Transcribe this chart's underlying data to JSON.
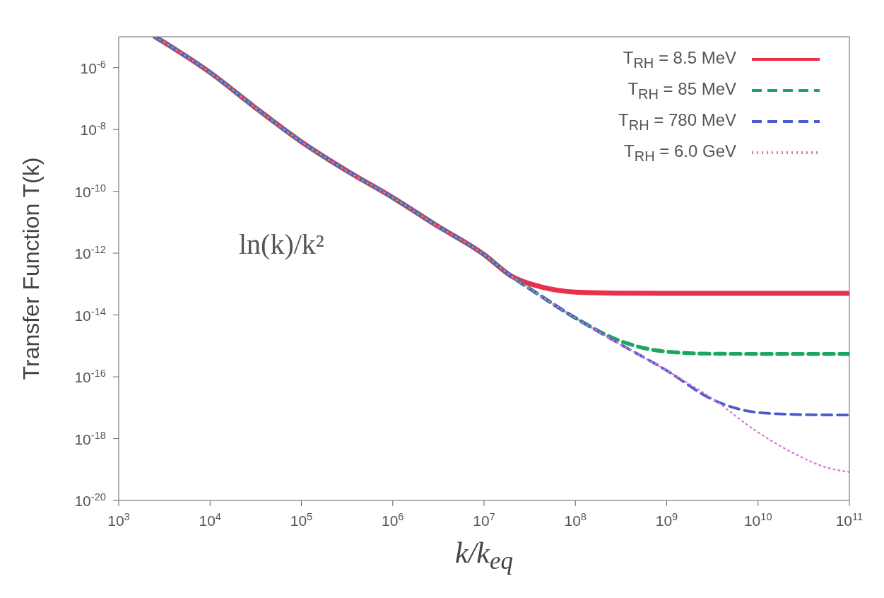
{
  "chart_data": {
    "type": "line",
    "xlabel": "k/k$_{eq}$",
    "ylabel": "Transfer Function T(k)",
    "log": "xy",
    "legend": "top right",
    "marker": "none",
    "xlim": [
      1000,
      100000000000
    ],
    "ylim": [
      1e-20,
      1e-05
    ],
    "xticks": [
      {
        "value": 1000,
        "label": "10$^{3}$"
      },
      {
        "value": 10000,
        "label": "10$^{4}$"
      },
      {
        "value": 100000,
        "label": "10$^{5}$"
      },
      {
        "value": 1000000,
        "label": "10$^{6}$"
      },
      {
        "value": 10000000,
        "label": "10$^{7}$"
      },
      {
        "value": 100000000,
        "label": "10$^{8}$"
      },
      {
        "value": 1000000000,
        "label": "10$^{9}$"
      },
      {
        "value": 10000000000,
        "label": "10$^{10}$"
      },
      {
        "value": 100000000000,
        "label": "10$^{11}$"
      }
    ],
    "yticks": [
      {
        "value": 1e-20,
        "label": "10$^{-20}$"
      },
      {
        "value": 1e-18,
        "label": "10$^{-18}$"
      },
      {
        "value": 1e-16,
        "label": "10$^{-16}$"
      },
      {
        "value": 1e-14,
        "label": "10$^{-14}$"
      },
      {
        "value": 1e-12,
        "label": "10$^{-12}$"
      },
      {
        "value": 1e-10,
        "label": "10$^{-10}$"
      },
      {
        "value": 1e-08,
        "label": "10$^{-8}$"
      },
      {
        "value": 1e-06,
        "label": "10$^{-6}$"
      }
    ],
    "annotations": [
      "ln(k)/k²"
    ],
    "series": [
      {
        "name": "T$_{RH}$ = 8.5 MeV",
        "color": "#e8304a",
        "line_style": "solid",
        "x": [
          2500,
          10000,
          30000,
          100000,
          300000,
          1000000,
          3000000,
          10000000,
          20000000,
          43000000,
          100000000,
          300000000,
          1000000000,
          10000000000,
          100000000000
        ],
        "values": [
          1e-05,
          7e-07,
          5.6e-08,
          4e-09,
          5e-10,
          6.3e-11,
          8e-12,
          9e-13,
          1.8e-13,
          8e-14,
          5.5e-14,
          5.1e-14,
          5e-14,
          5e-14,
          5e-14
        ]
      },
      {
        "name": "T$_{RH}$ = 85 MeV",
        "color": "#1aa860",
        "line_style": "dashed",
        "x": [
          2500,
          10000,
          30000,
          100000,
          300000,
          1000000,
          3000000,
          10000000,
          20000000,
          40000000,
          100000000,
          300000000,
          1000000000,
          3000000000,
          10000000000,
          100000000000
        ],
        "values": [
          1e-05,
          7e-07,
          5.6e-08,
          4e-09,
          5e-10,
          6.3e-11,
          8e-12,
          9e-13,
          1.8e-13,
          4.5e-14,
          8e-15,
          1.5e-15,
          6.5e-16,
          5.6e-16,
          5.5e-16,
          5.5e-16
        ]
      },
      {
        "name": "T$_{RH}$ = 780 MeV",
        "color": "#4a5ccc",
        "line_style": "dashed",
        "x": [
          2500,
          10000,
          30000,
          100000,
          300000,
          1000000,
          3000000,
          10000000,
          20000000,
          40000000,
          100000000,
          300000000,
          1000000000,
          3000000000,
          10000000000,
          30000000000,
          100000000000
        ],
        "values": [
          1e-05,
          7e-07,
          5.6e-08,
          4e-09,
          5e-10,
          6.3e-11,
          8e-12,
          9e-13,
          1.8e-13,
          4.5e-14,
          8e-15,
          1.2e-15,
          1.6e-16,
          2e-17,
          7e-18,
          6e-18,
          5.8e-18
        ]
      },
      {
        "name": "T$_{RH}$ = 6.0 GeV",
        "color": "#e070d0",
        "line_style": "dotted",
        "x": [
          2500,
          10000,
          30000,
          100000,
          300000,
          1000000,
          3000000,
          10000000,
          20000000,
          40000000,
          100000000,
          300000000,
          1000000000,
          3000000000,
          10000000000,
          30000000000,
          50000000000,
          100000000000
        ],
        "values": [
          1e-05,
          7e-07,
          5.6e-08,
          4e-09,
          5e-10,
          6.3e-11,
          8e-12,
          9e-13,
          1.8e-13,
          4.5e-14,
          8e-15,
          1.2e-15,
          1.6e-16,
          2.2e-17,
          1.6e-18,
          2.5e-19,
          1.3e-19,
          8.3e-20
        ]
      }
    ]
  }
}
